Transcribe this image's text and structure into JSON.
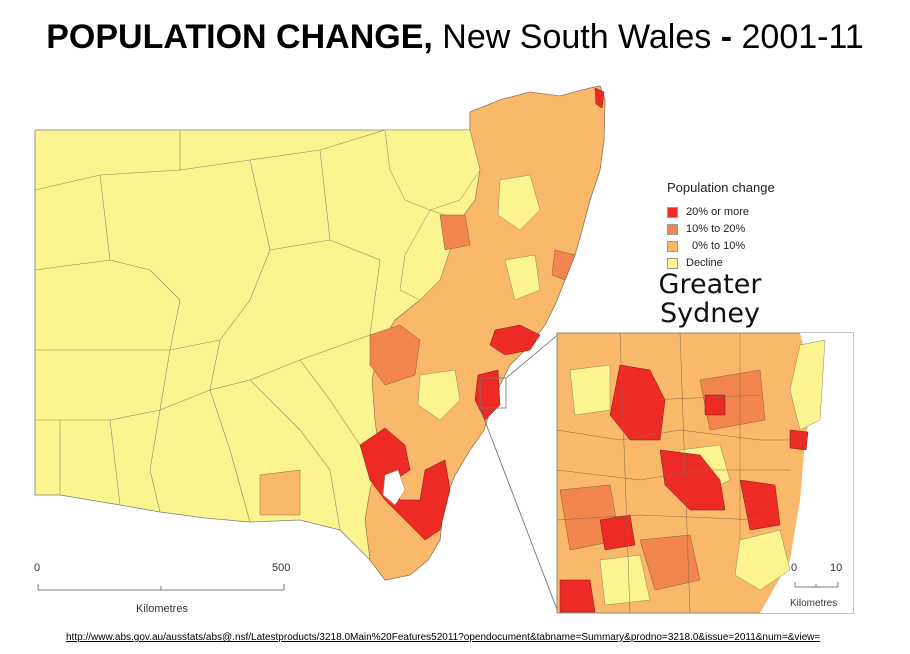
{
  "title": {
    "bold": "POPULATION CHANGE,",
    "rest": "New South Wales",
    "dash": "-",
    "years": "2001-11"
  },
  "legend": {
    "title": "Population change",
    "items": [
      {
        "label": "20% or more",
        "color": "#ee2a25"
      },
      {
        "label": "10% to 20%",
        "color": "#f3864f"
      },
      {
        "label": "0% to 10%",
        "color": "#f9b86a"
      },
      {
        "label": "Decline",
        "color": "#fcf48e"
      }
    ]
  },
  "inset": {
    "line1": "Greater",
    "line2": "Sydney"
  },
  "scale_main": {
    "start": "0",
    "end": "500",
    "unit": "Kilometres"
  },
  "scale_inset": {
    "start": "0",
    "end": "10",
    "unit": "Kilometres"
  },
  "source_url": "http://www.abs.gov.au/ausstats/abs@.nsf/Latestproducts/3218.0Main%20Features52011?opendocument&tabname=Summary&prodno=3218.0&issue=2011&num=&view="
}
